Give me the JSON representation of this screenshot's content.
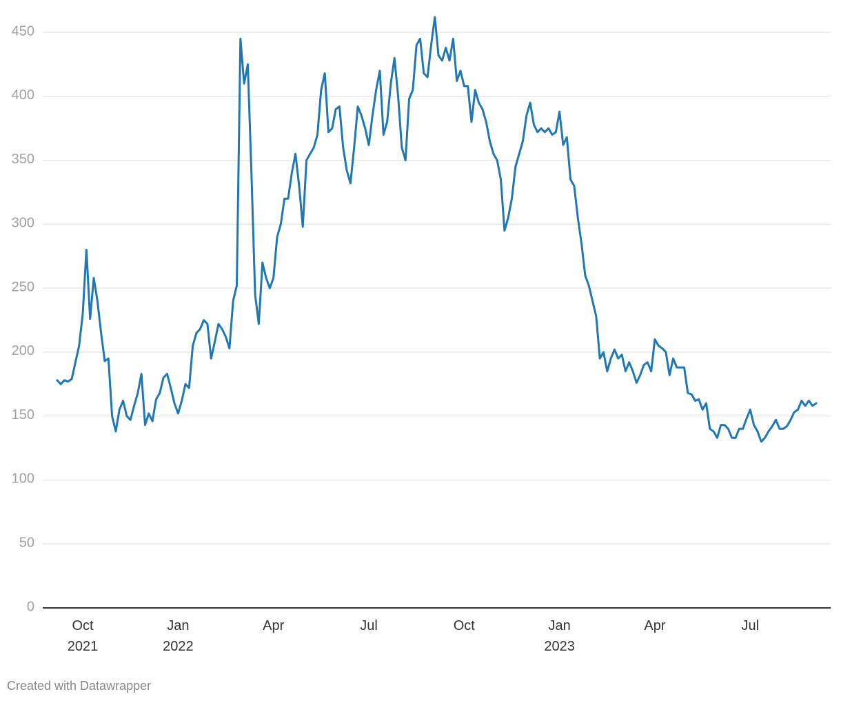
{
  "chart_data": {
    "type": "line",
    "credit": "Created with Datawrapper",
    "categories": [
      null,
      null,
      null,
      null,
      null,
      null,
      null,
      "Oct 2021",
      null,
      null,
      null,
      null,
      null,
      null,
      null,
      null,
      null,
      null,
      null,
      null,
      null,
      null,
      null,
      null,
      null,
      null,
      null,
      null,
      null,
      null,
      null,
      null,
      null,
      "Jan 2022",
      null,
      null,
      null,
      null,
      null,
      null,
      null,
      null,
      null,
      null,
      null,
      null,
      null,
      null,
      null,
      null,
      null,
      null,
      null,
      null,
      null,
      null,
      null,
      null,
      null,
      "Apr",
      null,
      null,
      null,
      null,
      null,
      null,
      null,
      null,
      null,
      null,
      null,
      null,
      null,
      null,
      null,
      null,
      null,
      null,
      null,
      null,
      null,
      null,
      null,
      null,
      null,
      "Jul",
      null,
      null,
      null,
      null,
      null,
      null,
      null,
      null,
      null,
      null,
      null,
      null,
      null,
      null,
      null,
      null,
      null,
      null,
      null,
      null,
      null,
      null,
      null,
      null,
      null,
      "Oct",
      null,
      null,
      null,
      null,
      null,
      null,
      null,
      null,
      null,
      null,
      null,
      null,
      null,
      null,
      null,
      null,
      null,
      null,
      null,
      null,
      null,
      null,
      null,
      null,
      null,
      "Jan 2023",
      null,
      null,
      null,
      null,
      null,
      null,
      null,
      null,
      null,
      null,
      null,
      null,
      null,
      null,
      null,
      null,
      null,
      null,
      null,
      null,
      null,
      null,
      null,
      null,
      null,
      "Apr",
      null,
      null,
      null,
      null,
      null,
      null,
      null,
      null,
      null,
      null,
      null,
      null,
      null,
      null,
      null,
      null,
      null,
      null,
      null,
      null,
      null,
      null,
      null,
      null,
      null,
      "Jul",
      null,
      null,
      null,
      null,
      null,
      null,
      null,
      null,
      null,
      null,
      null,
      null,
      null,
      null,
      null,
      null,
      null,
      null
    ],
    "series": [
      {
        "color": "#1f77b4",
        "values": [
          178,
          175,
          178,
          177,
          179,
          192,
          205,
          230,
          280,
          226,
          258,
          240,
          215,
          193,
          195,
          150,
          138,
          155,
          162,
          150,
          147,
          158,
          168,
          183,
          143,
          152,
          146,
          163,
          168,
          180,
          183,
          172,
          160,
          152,
          162,
          175,
          172,
          205,
          215,
          218,
          225,
          222,
          195,
          208,
          222,
          218,
          212,
          203,
          240,
          252,
          445,
          410,
          425,
          340,
          245,
          222,
          270,
          258,
          250,
          258,
          290,
          300,
          320,
          320,
          340,
          355,
          330,
          298,
          350,
          355,
          360,
          370,
          405,
          418,
          372,
          375,
          390,
          392,
          360,
          342,
          332,
          360,
          392,
          385,
          375,
          362,
          385,
          405,
          420,
          370,
          380,
          410,
          430,
          400,
          360,
          350,
          398,
          405,
          440,
          445,
          418,
          415,
          440,
          462,
          432,
          428,
          438,
          428,
          445,
          412,
          420,
          408,
          408,
          380,
          405,
          395,
          390,
          380,
          365,
          355,
          350,
          335,
          295,
          305,
          320,
          345,
          355,
          365,
          385,
          395,
          378,
          372,
          375,
          372,
          375,
          370,
          372,
          388,
          362,
          368,
          335,
          330,
          305,
          285,
          260,
          252,
          240,
          228,
          195,
          200,
          185,
          195,
          202,
          195,
          198,
          185,
          192,
          185,
          176,
          182,
          190,
          192,
          185,
          210,
          205,
          203,
          200,
          182,
          195,
          188,
          188,
          188,
          168,
          167,
          162,
          163,
          155,
          160,
          140,
          138,
          133,
          143,
          143,
          140,
          133,
          133,
          140,
          140,
          148,
          155,
          143,
          138,
          130,
          133,
          138,
          142,
          147,
          140,
          140,
          142,
          147,
          153,
          155,
          162,
          158,
          162,
          158,
          160
        ]
      }
    ],
    "ylim": [
      0,
      450
    ],
    "yticks": [
      0,
      50,
      100,
      150,
      200,
      250,
      300,
      350,
      400,
      450
    ],
    "grid": true
  }
}
